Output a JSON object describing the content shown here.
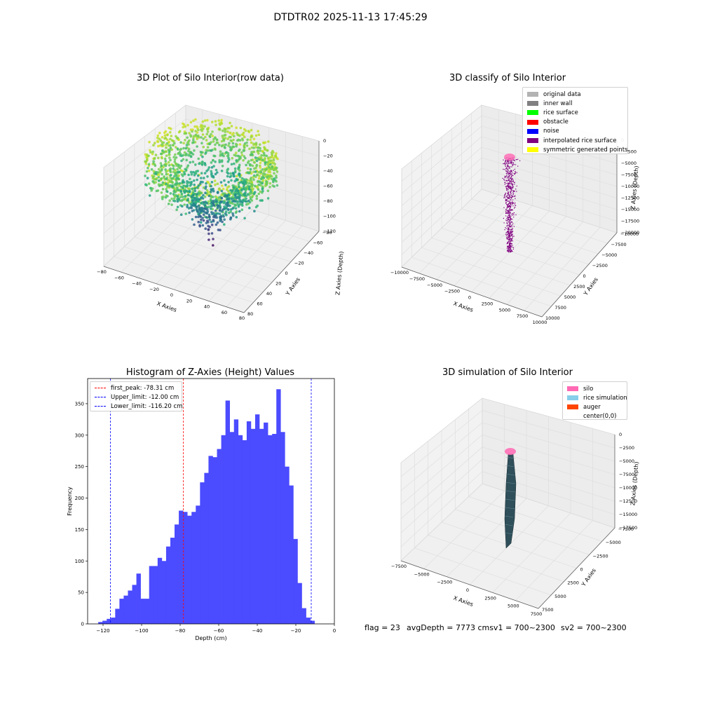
{
  "suptitle": "DTDTR02 2025-11-13 17:45:29",
  "chart_data": [
    {
      "type": "scatter",
      "title": "3D Plot of Silo Interior(row data)",
      "xlabel": "X Axies",
      "ylabel": "Y Axies",
      "zlabel": "Z Axies (Depth)",
      "x_ticks": [
        "−80",
        "−60",
        "−40",
        "−20",
        "0",
        "20",
        "40",
        "60",
        "80"
      ],
      "y_ticks": [
        "−80",
        "−60",
        "−40",
        "−20",
        "0",
        "20",
        "40",
        "60",
        "80"
      ],
      "z_ticks": [
        "0",
        "−20",
        "−40",
        "−60",
        "−80",
        "−100",
        "−120"
      ],
      "xlim": [
        -80,
        80
      ],
      "ylim": [
        -80,
        80
      ],
      "zlim": [
        -130,
        0
      ],
      "colormap": "viridis",
      "grid": true
    },
    {
      "type": "scatter",
      "title": "3D classify of Silo Interior",
      "xlabel": "X Axies",
      "ylabel": "Y Axies",
      "zlabel": "Z Axies (Depth)",
      "x_ticks": [
        "−10000",
        "−7500",
        "−5000",
        "−2500",
        "0",
        "2500",
        "5000",
        "7500",
        "10000"
      ],
      "y_ticks": [
        "−10000",
        "−7500",
        "−5000",
        "−2500",
        "0",
        "2500",
        "5000",
        "7500",
        "10000"
      ],
      "z_ticks": [
        "0",
        "−2500",
        "−5000",
        "−7500",
        "−10000",
        "−12500",
        "−15000",
        "−17500",
        "−20000"
      ],
      "xlim": [
        -10000,
        10000
      ],
      "ylim": [
        -10000,
        10000
      ],
      "zlim": [
        -20000,
        0
      ],
      "legend_position": "top-right",
      "legend": [
        {
          "label": "original data",
          "color": "#b3b3b3"
        },
        {
          "label": "inner wall",
          "color": "#808080"
        },
        {
          "label": "rice surface",
          "color": "#00ff00"
        },
        {
          "label": "obstacle",
          "color": "#ff0000"
        },
        {
          "label": "noise",
          "color": "#0000ff"
        },
        {
          "label": "interpolated rice surface",
          "color": "#800080"
        },
        {
          "label": "symmetric generated points",
          "color": "#ffff00"
        }
      ],
      "grid": true
    },
    {
      "type": "bar",
      "title": "Histogram of Z-Axies (Height) Values",
      "xlabel": "Depth (cm)",
      "ylabel": "Frequency",
      "xlim": [
        -128,
        0
      ],
      "ylim": [
        0,
        390
      ],
      "x_ticks": [
        -120,
        -100,
        -80,
        -60,
        -40,
        -20,
        0
      ],
      "y_ticks": [
        0,
        50,
        100,
        150,
        200,
        250,
        300,
        350
      ],
      "bin_start": -122.5,
      "bin_width": 2.2,
      "values": [
        3,
        5,
        8,
        10,
        24,
        40,
        45,
        53,
        62,
        80,
        40,
        40,
        92,
        92,
        105,
        100,
        123,
        137,
        158,
        180,
        178,
        172,
        178,
        188,
        225,
        240,
        267,
        265,
        278,
        300,
        355,
        305,
        325,
        300,
        292,
        322,
        310,
        333,
        310,
        320,
        300,
        302,
        373,
        305,
        250,
        220,
        135,
        65,
        25,
        10,
        5
      ],
      "bar_color": "#4b4bff",
      "lines": [
        {
          "label": "first_peak: -78.31 cm",
          "x": -78.31,
          "color": "#ff0000"
        },
        {
          "label": "Upper_limit: -12.00 cm",
          "x": -12.0,
          "color": "#0000ff"
        },
        {
          "label": "Lower_limit: -116.20 cm",
          "x": -116.2,
          "color": "#0000ff"
        }
      ],
      "legend_position": "top-left",
      "grid": false
    },
    {
      "type": "area",
      "title": "3D simulation of Silo Interior",
      "xlabel": "X Axies",
      "ylabel": "Y Axies",
      "zlabel": "Z Axies (Depth)",
      "x_ticks": [
        "−7500",
        "−5000",
        "−2500",
        "0",
        "2500",
        "5000",
        "7500"
      ],
      "y_ticks": [
        "−7500",
        "−5000",
        "−2500",
        "0",
        "2500",
        "5000",
        "7500"
      ],
      "z_ticks": [
        "0",
        "−2500",
        "−5000",
        "−7500",
        "−10000",
        "−12500",
        "−15000",
        "−17500"
      ],
      "xlim": [
        -7500,
        7500
      ],
      "ylim": [
        -7500,
        7500
      ],
      "zlim": [
        -17500,
        0
      ],
      "legend_position": "top-right",
      "legend": [
        {
          "label": "silo",
          "color": "#ff69b4"
        },
        {
          "label": "rice simulation",
          "color": "#87ceeb"
        },
        {
          "label": "auger",
          "color": "#ff4500"
        },
        {
          "label": "center(0,0)",
          "color": "#ffffff"
        }
      ],
      "grid": true
    }
  ],
  "footer": {
    "flag": "flag = 23",
    "avg": "avgDepth = 7773 cmsv1 = 700~2300",
    "sv2": "sv2 = 700~2300"
  }
}
